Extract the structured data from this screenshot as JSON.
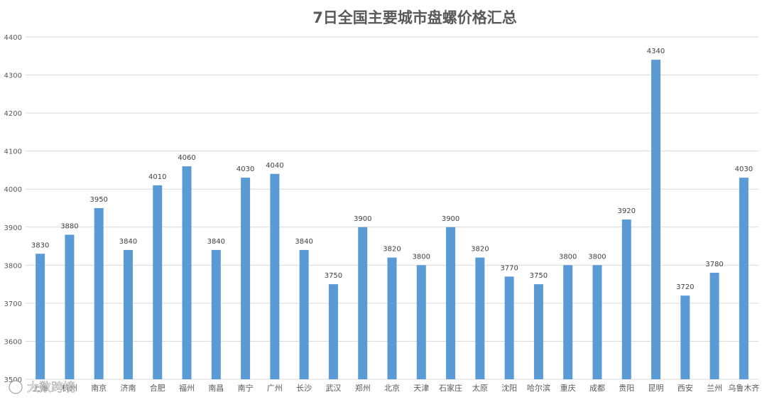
{
  "chart_data": {
    "type": "bar",
    "title": "7日全国主要城市盘螺价格汇总",
    "categories": [
      "上海",
      "杭州",
      "南京",
      "济南",
      "合肥",
      "福州",
      "南昌",
      "南宁",
      "广州",
      "长沙",
      "武汉",
      "郑州",
      "北京",
      "天津",
      "石家庄",
      "太原",
      "沈阳",
      "哈尔滨",
      "重庆",
      "成都",
      "贵阳",
      "昆明",
      "西安",
      "兰州",
      "乌鲁木齐"
    ],
    "values": [
      3830,
      3880,
      3950,
      3840,
      4010,
      4060,
      3840,
      4030,
      4040,
      3840,
      3750,
      3900,
      3820,
      3800,
      3900,
      3820,
      3770,
      3750,
      3800,
      3800,
      3920,
      4340,
      3720,
      3780,
      4030
    ],
    "ylim": [
      3500,
      4400
    ],
    "yticks": [
      3500,
      3600,
      3700,
      3800,
      3900,
      4000,
      4100,
      4200,
      4300,
      4400
    ],
    "grid": true,
    "bar_color": "#5b9bd5",
    "xlabel": "",
    "ylabel": ""
  },
  "watermark": {
    "text": "大数跨境"
  }
}
